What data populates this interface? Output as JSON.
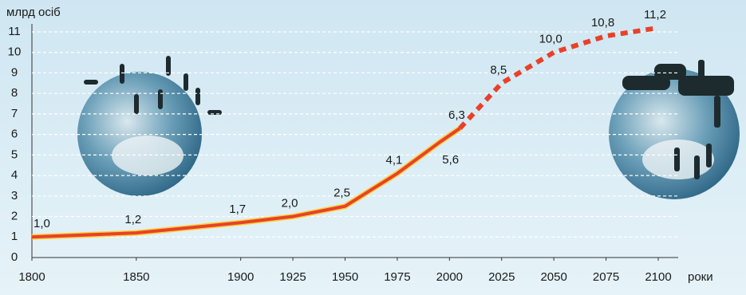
{
  "chart_data": {
    "type": "line",
    "y_axis_label": "млрд осіб",
    "x_axis_label": "роки",
    "x": [
      1800,
      1850,
      1900,
      1925,
      1950,
      1975,
      1995,
      2005,
      2025,
      2050,
      2075,
      2100
    ],
    "series": [
      {
        "color": "#e8412a",
        "style": "solid",
        "values": [
          1.0,
          1.2,
          1.7,
          2.0,
          2.5,
          4.1,
          5.6,
          6.3,
          null,
          null,
          null,
          null
        ],
        "value_labels": [
          "1,0",
          "1,2",
          "1,7",
          "2,0",
          "2,5",
          "4,1",
          "5,6",
          "6,3",
          null,
          null,
          null,
          null
        ]
      },
      {
        "color": "#e8412a",
        "style": "dashed",
        "values": [
          null,
          null,
          null,
          null,
          null,
          null,
          null,
          6.3,
          8.5,
          10.0,
          10.8,
          11.2
        ],
        "value_labels": [
          null,
          null,
          null,
          null,
          null,
          null,
          null,
          null,
          "8,5",
          "10,0",
          "10,8",
          "11,2"
        ]
      }
    ],
    "xlim": [
      1800,
      2100
    ],
    "xticks": [
      1800,
      1850,
      1900,
      1925,
      1950,
      1975,
      2000,
      2025,
      2050,
      2075,
      2100
    ],
    "ylim": [
      0,
      11
    ],
    "yticks": [
      0,
      1,
      2,
      3,
      4,
      5,
      6,
      7,
      8,
      9,
      10,
      11
    ],
    "grid": true
  }
}
